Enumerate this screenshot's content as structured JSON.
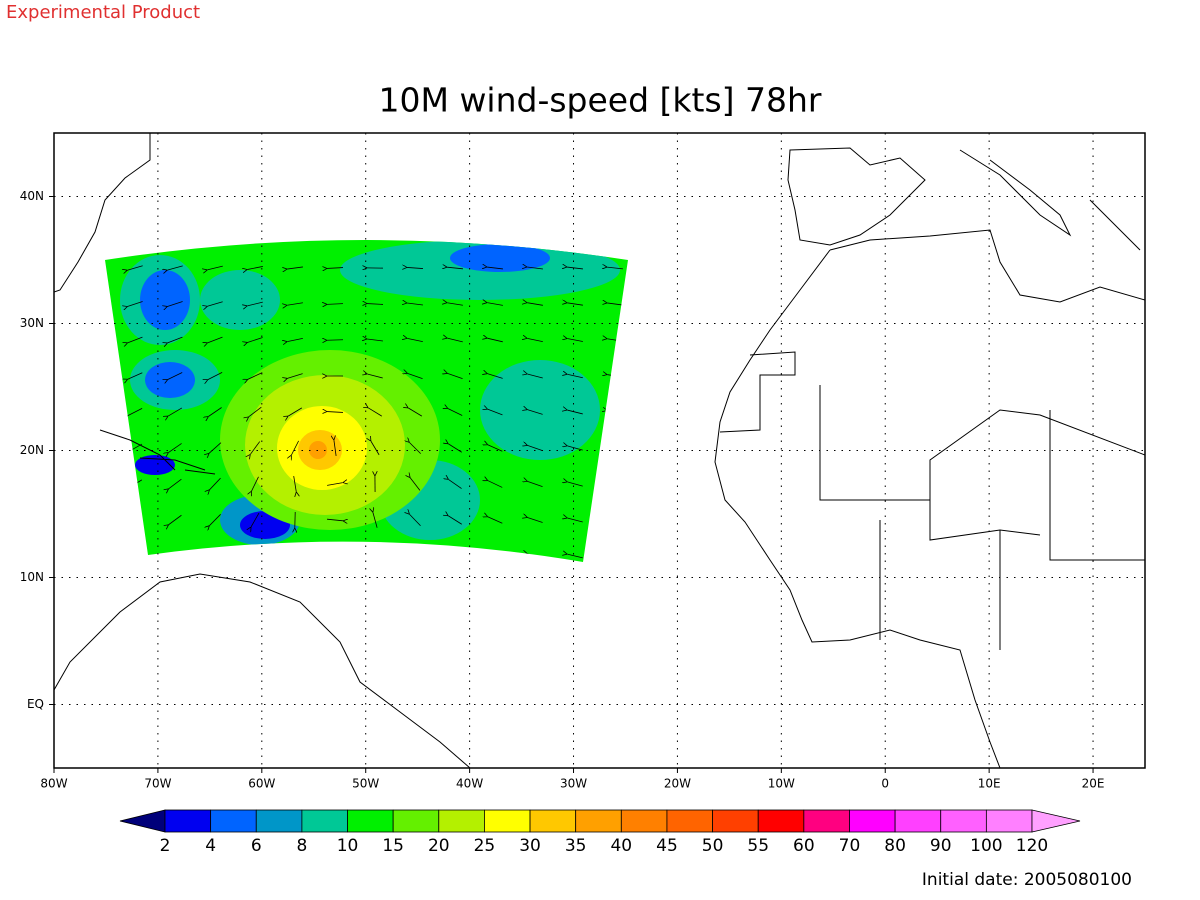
{
  "header": {
    "label": "Experimental Product"
  },
  "title": "10M wind-speed [kts] 78hr",
  "map": {
    "xlim": [
      -80,
      25
    ],
    "ylim": [
      -5,
      45
    ],
    "xticks": [
      {
        "value": -80,
        "label": "80W"
      },
      {
        "value": -70,
        "label": "70W"
      },
      {
        "value": -60,
        "label": "60W"
      },
      {
        "value": -50,
        "label": "50W"
      },
      {
        "value": -40,
        "label": "40W"
      },
      {
        "value": -30,
        "label": "30W"
      },
      {
        "value": -20,
        "label": "20W"
      },
      {
        "value": -10,
        "label": "10W"
      },
      0,
      {
        "value": 10,
        "label": "10E"
      },
      {
        "value": 20,
        "label": "20E"
      }
    ],
    "yticks": [
      {
        "value": 0,
        "label": "EQ"
      },
      {
        "value": 10,
        "label": "10N"
      },
      {
        "value": 20,
        "label": "20N"
      },
      {
        "value": 30,
        "label": "30N"
      },
      {
        "value": 40,
        "label": "40N"
      }
    ],
    "grid": true
  },
  "colorbar": {
    "levels": [
      2,
      4,
      6,
      8,
      10,
      15,
      20,
      25,
      30,
      35,
      40,
      45,
      50,
      55,
      60,
      70,
      80,
      90,
      100,
      120
    ],
    "colors": [
      "#00007a",
      "#0000f0",
      "#0064ff",
      "#0096c8",
      "#00c896",
      "#00f000",
      "#64f000",
      "#b4f000",
      "#ffff00",
      "#ffc800",
      "#ffa000",
      "#ff8000",
      "#ff6400",
      "#ff4000",
      "#ff0000",
      "#ff0080",
      "#ff00ff",
      "#ff40ff",
      "#ff60ff",
      "#ff80ff",
      "#ffa0ff"
    ]
  },
  "footer": "Initial date: 2005080100"
}
